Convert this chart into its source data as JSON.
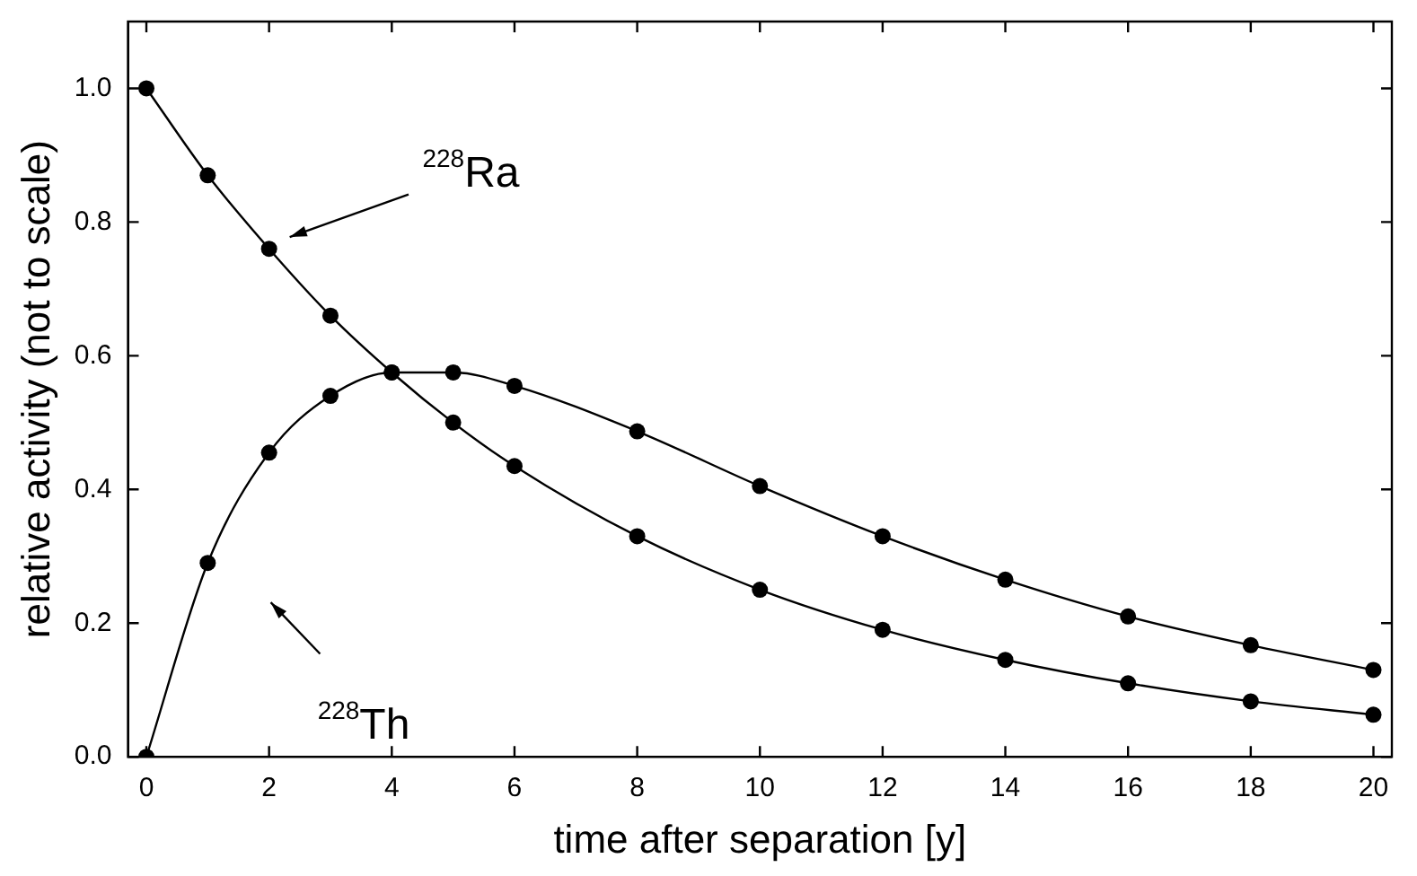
{
  "chart_data": {
    "type": "line",
    "xlabel": "time after separation [y]",
    "ylabel": "relative activity (not to scale)",
    "xlim": [
      -0.3,
      20.3
    ],
    "ylim": [
      0,
      1.1
    ],
    "xticks": [
      0,
      2,
      4,
      6,
      8,
      10,
      12,
      14,
      16,
      18,
      20
    ],
    "yticks": [
      {
        "value": 0,
        "label": "0.0"
      },
      {
        "value": 0.2,
        "label": "0.2"
      },
      {
        "value": 0.4,
        "label": "0.4"
      },
      {
        "value": 0.6,
        "label": "0.6"
      },
      {
        "value": 0.8,
        "label": "0.8"
      },
      {
        "value": 1,
        "label": "1.0"
      }
    ],
    "x": [
      0,
      1,
      2,
      3,
      4,
      5,
      6,
      8,
      10,
      12,
      14,
      16,
      18,
      20
    ],
    "series": [
      {
        "color": "#000000",
        "values": [
          1.0,
          0.87,
          0.76,
          0.66,
          0.575,
          0.5,
          0.435,
          0.33,
          0.25,
          0.19,
          0.145,
          0.11,
          0.083,
          0.063
        ]
      },
      {
        "color": "#000000",
        "values": [
          0,
          0.29,
          0.455,
          0.54,
          0.575,
          0.575,
          0.555,
          0.487,
          0.405,
          0.33,
          0.265,
          0.21,
          0.167,
          0.13
        ]
      }
    ],
    "annotations": [
      "$^{228}$Ra",
      "$^{228}$Th"
    ],
    "marker": "circle",
    "line_style": "solid",
    "grid": false,
    "legend": false
  }
}
